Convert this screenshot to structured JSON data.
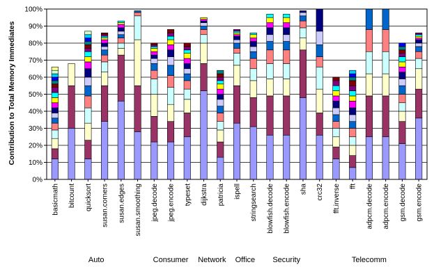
{
  "chart_data": {
    "type": "bar",
    "stacked": true,
    "title": "",
    "xlabel": "",
    "ylabel": "Contribution to Total Memory Immediates",
    "ylim": [
      0,
      100
    ],
    "y_ticks": [
      "0%",
      "10%",
      "20%",
      "30%",
      "40%",
      "50%",
      "60%",
      "70%",
      "80%",
      "90%",
      "100%"
    ],
    "grid": true,
    "legend": "none",
    "categories": [
      "basicmath",
      "bitcount",
      "quicksort",
      "susan.corners",
      "susan.edges",
      "susan.smoothing",
      "jpeg.decode",
      "jpeg.encode",
      "typeset",
      "dijkstra",
      "patricia",
      "ispell",
      "stringsearch",
      "blowfish.decode",
      "blowfish.encode",
      "sha",
      "crc32",
      "fft.inverse",
      "fft",
      "adpcm.decode",
      "adpcm.encode",
      "gsm.decode",
      "gsm.encode"
    ],
    "groups": [
      {
        "label": "Auto",
        "categories": [
          "basicmath",
          "bitcount",
          "quicksort",
          "susan.corners",
          "susan.edges",
          "susan.smoothing"
        ]
      },
      {
        "label": "Consumer",
        "categories": [
          "jpeg.decode",
          "jpeg.encode",
          "typeset"
        ]
      },
      {
        "label": "Network",
        "categories": [
          "dijkstra",
          "patricia"
        ]
      },
      {
        "label": "Office",
        "categories": [
          "ispell",
          "stringsearch"
        ]
      },
      {
        "label": "Security",
        "categories": [
          "blowfish.decode",
          "blowfish.encode",
          "sha"
        ]
      },
      {
        "label": "Telecomm",
        "categories": [
          "crc32",
          "fft.inverse",
          "fft",
          "adpcm.decode",
          "adpcm.encode",
          "gsm.decode",
          "gsm.encode"
        ]
      }
    ],
    "series_colors": [
      "#9999ff",
      "#993366",
      "#ffffcc",
      "#ccffff",
      "#ff8080",
      "#0066cc",
      "#ccccff",
      "#000080",
      "#ff00ff",
      "#ffff00",
      "#00ffff",
      "#800080",
      "#800000",
      "#008080",
      "#0000ff",
      "#00ccff",
      "#ccffcc",
      "#ffff99",
      "#99ccff",
      "#ff99cc",
      "#cc99ff",
      "#ffcc99"
    ],
    "series_values": [
      [
        12,
        6,
        6,
        5,
        4,
        3,
        3,
        3,
        3,
        3,
        3,
        3,
        2,
        2,
        2,
        2,
        2,
        2,
        0,
        0,
        0,
        0
      ],
      [
        30,
        25,
        13,
        0,
        0,
        0,
        0,
        0,
        0,
        0,
        0,
        0,
        0,
        0,
        0,
        0,
        0,
        0,
        0,
        0,
        0,
        0
      ],
      [
        12,
        11,
        10,
        9,
        7,
        6,
        5,
        5,
        4,
        3,
        3,
        2,
        2,
        2,
        2,
        2,
        2,
        0,
        0,
        0,
        0,
        0
      ],
      [
        34,
        21,
        8,
        6,
        4,
        3,
        2,
        2,
        2,
        1,
        1,
        1,
        1,
        0,
        0,
        0,
        0,
        0,
        0,
        0,
        0,
        0
      ],
      [
        46,
        27,
        4,
        3,
        3,
        2,
        2,
        2,
        2,
        1,
        1,
        0,
        0,
        0,
        0,
        0,
        0,
        0,
        0,
        0,
        0,
        0
      ],
      [
        28,
        27,
        27,
        14,
        2,
        1,
        0,
        0,
        0,
        0,
        0,
        0,
        0,
        0,
        0,
        0,
        0,
        0,
        0,
        0,
        0,
        0
      ],
      [
        22,
        15,
        13,
        9,
        5,
        4,
        3,
        2,
        2,
        2,
        1,
        1,
        1,
        0,
        0,
        0,
        0,
        0,
        0,
        0,
        0,
        0
      ],
      [
        22,
        12,
        10,
        10,
        7,
        6,
        5,
        4,
        3,
        3,
        2,
        2,
        2,
        0,
        0,
        0,
        0,
        0,
        0,
        0,
        0,
        0
      ],
      [
        25,
        14,
        8,
        6,
        5,
        4,
        3,
        3,
        3,
        3,
        2,
        2,
        2,
        0,
        0,
        0,
        0,
        0,
        0,
        0,
        0,
        0
      ],
      [
        52,
        16,
        12,
        5,
        3,
        2,
        2,
        1,
        1,
        1,
        0,
        0,
        0,
        0,
        0,
        0,
        0,
        0,
        0,
        0,
        0,
        0
      ],
      [
        13,
        9,
        7,
        5,
        5,
        4,
        4,
        3,
        3,
        3,
        2,
        2,
        2,
        2,
        0,
        0,
        0,
        0,
        0,
        0,
        0,
        0
      ],
      [
        33,
        22,
        12,
        7,
        3,
        3,
        2,
        2,
        1,
        1,
        1,
        1,
        0,
        0,
        0,
        0,
        0,
        0,
        0,
        0,
        0,
        0
      ],
      [
        31,
        17,
        10,
        7,
        6,
        4,
        3,
        3,
        2,
        2,
        1,
        0,
        0,
        0,
        0,
        0,
        0,
        0,
        0,
        0,
        0,
        0
      ],
      [
        26,
        23,
        10,
        9,
        8,
        5,
        4,
        4,
        3,
        3,
        2,
        0,
        0,
        0,
        0,
        0,
        0,
        0,
        0,
        0,
        0,
        0
      ],
      [
        26,
        23,
        10,
        9,
        8,
        5,
        4,
        4,
        3,
        3,
        2,
        0,
        0,
        0,
        0,
        0,
        0,
        0,
        0,
        0,
        0,
        0
      ],
      [
        48,
        28,
        7,
        6,
        4,
        3,
        2,
        1,
        0,
        0,
        0,
        0,
        0,
        0,
        0,
        0,
        0,
        0,
        0,
        0,
        0,
        0
      ],
      [
        26,
        13,
        14,
        13,
        6,
        7,
        8,
        13,
        0,
        0,
        0,
        0,
        0,
        0,
        0,
        0,
        0,
        0,
        0,
        0,
        0,
        0
      ],
      [
        12,
        7,
        6,
        5,
        4,
        4,
        4,
        4,
        3,
        3,
        3,
        3,
        2,
        0,
        0,
        0,
        0,
        0,
        0,
        0,
        0,
        0
      ],
      [
        7,
        7,
        6,
        5,
        5,
        4,
        4,
        4,
        4,
        3,
        3,
        3,
        3,
        2,
        2,
        2,
        0,
        0,
        0,
        0,
        0,
        0
      ],
      [
        25,
        24,
        13,
        13,
        13,
        12,
        0,
        0,
        0,
        0,
        0,
        0,
        0,
        0,
        0,
        0,
        0,
        0,
        0,
        0,
        0,
        0
      ],
      [
        25,
        24,
        13,
        13,
        13,
        12,
        0,
        0,
        0,
        0,
        0,
        0,
        0,
        0,
        0,
        0,
        0,
        0,
        0,
        0,
        0,
        0
      ],
      [
        21,
        13,
        6,
        5,
        5,
        5,
        4,
        4,
        3,
        3,
        3,
        2,
        2,
        2,
        2,
        0,
        0,
        0,
        0,
        0,
        0,
        0
      ],
      [
        36,
        17,
        12,
        6,
        4,
        3,
        2,
        2,
        1,
        1,
        1,
        1,
        0,
        0,
        0,
        0,
        0,
        0,
        0,
        0,
        0,
        0
      ]
    ]
  }
}
